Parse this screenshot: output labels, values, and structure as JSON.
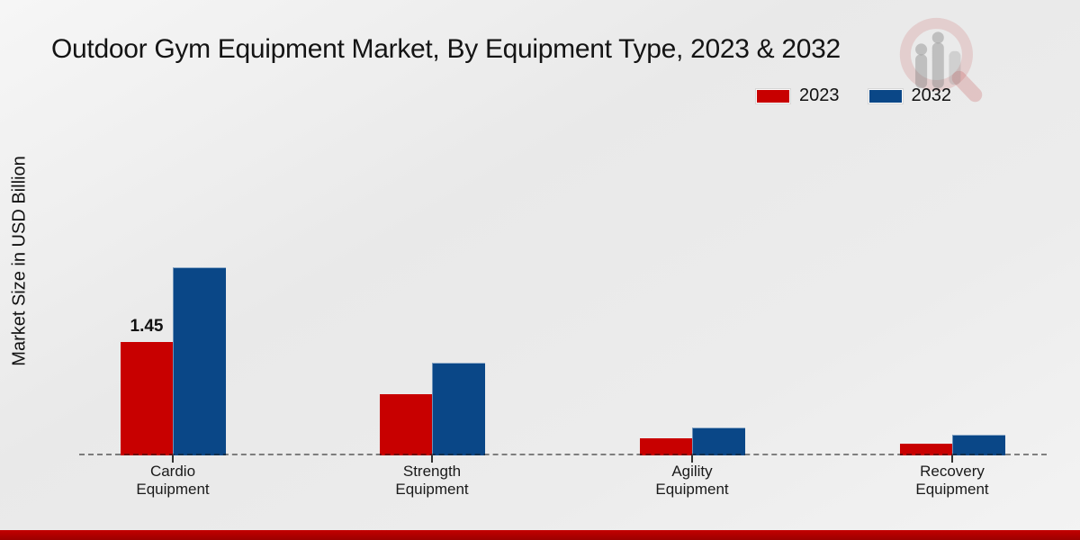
{
  "page": {
    "title": "Outdoor Gym Equipment Market, By Equipment Type, 2023 & 2032",
    "ylabel": "Market Size in USD Billion"
  },
  "legend": {
    "position": "top-right",
    "items": [
      {
        "label": "2023",
        "color": "#c80000"
      },
      {
        "label": "2032",
        "color": "#0a4787"
      }
    ]
  },
  "chart_data": {
    "type": "bar",
    "title": "Outdoor Gym Equipment Market, By Equipment Type, 2023 & 2032",
    "xlabel": "",
    "ylabel": "Market Size in USD Billion",
    "categories": [
      "Cardio Equipment",
      "Strength Equipment",
      "Agility Equipment",
      "Recovery Equipment"
    ],
    "series": [
      {
        "name": "2023",
        "color": "#c80000",
        "values": [
          1.45,
          0.78,
          0.22,
          0.15
        ]
      },
      {
        "name": "2032",
        "color": "#0a4787",
        "values": [
          2.39,
          1.17,
          0.34,
          0.25
        ]
      }
    ],
    "data_labels": [
      {
        "series": "2023",
        "category": "Cardio Equipment",
        "text": "1.45"
      }
    ],
    "ylim": [
      0,
      2.6
    ],
    "grid": false,
    "axis_style": "dashed-zero-line-only",
    "legend_position": "top-right"
  },
  "watermark": {
    "icon": "magnifier-bar-chart-logo"
  },
  "footer": {
    "accent_color": "#b30000"
  }
}
